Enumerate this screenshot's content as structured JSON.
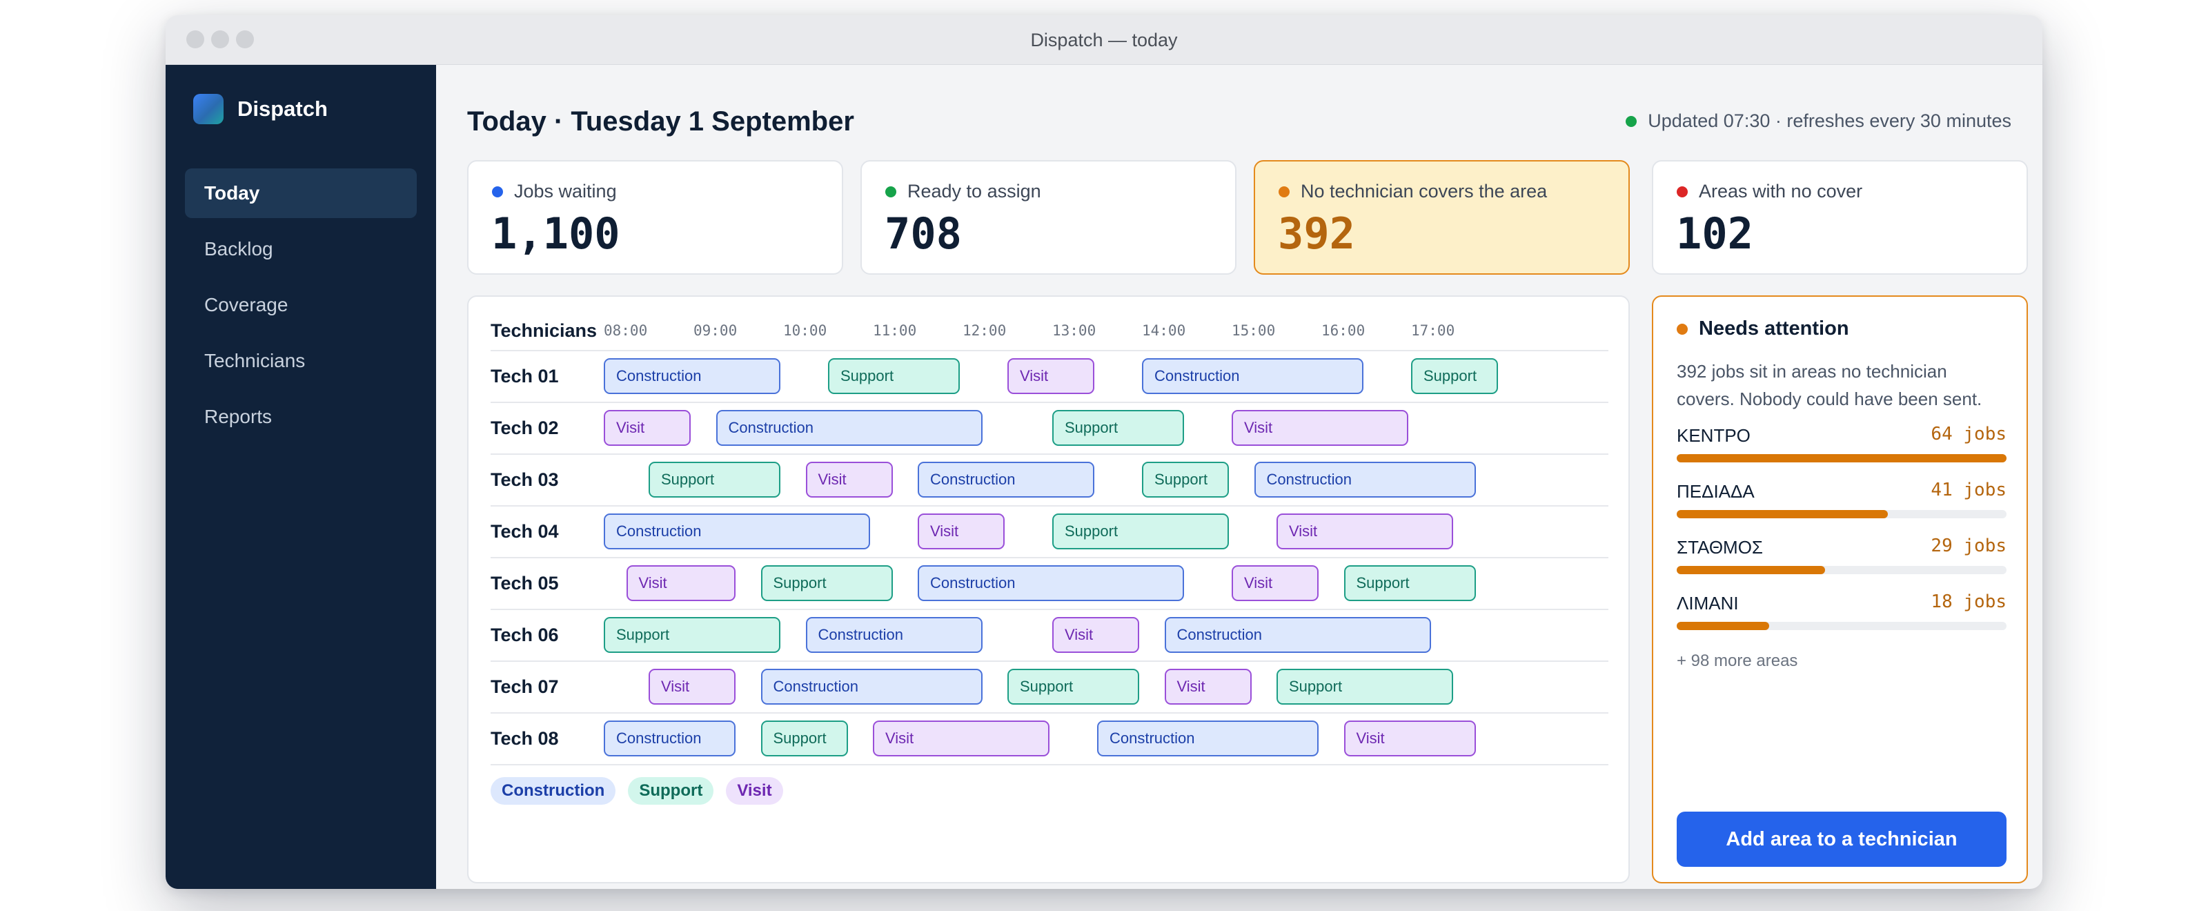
{
  "window": {
    "title": "Dispatch — today"
  },
  "sidebar": {
    "brand": "Dispatch",
    "items": [
      {
        "label": "Today",
        "active": true
      },
      {
        "label": "Backlog",
        "active": false
      },
      {
        "label": "Coverage",
        "active": false
      },
      {
        "label": "Technicians",
        "active": false
      },
      {
        "label": "Reports",
        "active": false
      }
    ]
  },
  "header": {
    "title": "Today · Tuesday 1 September",
    "updated": "Updated 07:30 · refreshes every 30 minutes"
  },
  "stats": [
    {
      "label": "Jobs waiting",
      "value": "1,100",
      "dot_color": "#2563eb",
      "highlight": false
    },
    {
      "label": "Ready to assign",
      "value": "708",
      "dot_color": "#16a34a",
      "highlight": false
    },
    {
      "label": "No technician covers the area",
      "value": "392",
      "dot_color": "#e07b12",
      "highlight": true
    },
    {
      "label": "Areas with no cover",
      "value": "102",
      "dot_color": "#dc2626",
      "highlight": false
    }
  ],
  "schedule": {
    "header_label": "Technicians",
    "hours": [
      "08:00",
      "09:00",
      "10:00",
      "11:00",
      "12:00",
      "13:00",
      "14:00",
      "15:00",
      "16:00",
      "17:00"
    ],
    "rows": [
      {
        "name": "Tech 01",
        "jobs": [
          {
            "type": "Construction",
            "start": "08:00",
            "end": "10:00"
          },
          {
            "type": "Support",
            "start": "10:30",
            "end": "12:00"
          },
          {
            "type": "Visit",
            "start": "12:30",
            "end": "13:30"
          },
          {
            "type": "Construction",
            "start": "14:00",
            "end": "16:30"
          },
          {
            "type": "Support",
            "start": "17:00",
            "end": "18:00"
          }
        ]
      },
      {
        "name": "Tech 02",
        "jobs": [
          {
            "type": "Visit",
            "start": "08:00",
            "end": "09:00"
          },
          {
            "type": "Construction",
            "start": "09:15",
            "end": "12:15"
          },
          {
            "type": "Support",
            "start": "13:00",
            "end": "14:30"
          },
          {
            "type": "Visit",
            "start": "15:00",
            "end": "17:00"
          }
        ]
      },
      {
        "name": "Tech 03",
        "jobs": [
          {
            "type": "Support",
            "start": "08:30",
            "end": "10:00"
          },
          {
            "type": "Visit",
            "start": "10:15",
            "end": "11:15"
          },
          {
            "type": "Construction",
            "start": "11:30",
            "end": "13:30"
          },
          {
            "type": "Support",
            "start": "14:00",
            "end": "15:00"
          },
          {
            "type": "Construction",
            "start": "15:15",
            "end": "17:45"
          }
        ]
      },
      {
        "name": "Tech 04",
        "jobs": [
          {
            "type": "Construction",
            "start": "08:00",
            "end": "11:00"
          },
          {
            "type": "Visit",
            "start": "11:30",
            "end": "12:30"
          },
          {
            "type": "Support",
            "start": "13:00",
            "end": "15:00"
          },
          {
            "type": "Visit",
            "start": "15:30",
            "end": "17:30"
          }
        ]
      },
      {
        "name": "Tech 05",
        "jobs": [
          {
            "type": "Visit",
            "start": "08:15",
            "end": "09:30"
          },
          {
            "type": "Support",
            "start": "09:45",
            "end": "11:15"
          },
          {
            "type": "Construction",
            "start": "11:30",
            "end": "14:30"
          },
          {
            "type": "Visit",
            "start": "15:00",
            "end": "16:00"
          },
          {
            "type": "Support",
            "start": "16:15",
            "end": "17:45"
          }
        ]
      },
      {
        "name": "Tech 06",
        "jobs": [
          {
            "type": "Support",
            "start": "08:00",
            "end": "10:00"
          },
          {
            "type": "Construction",
            "start": "10:15",
            "end": "12:15"
          },
          {
            "type": "Visit",
            "start": "13:00",
            "end": "14:00"
          },
          {
            "type": "Construction",
            "start": "14:15",
            "end": "17:15"
          }
        ]
      },
      {
        "name": "Tech 07",
        "jobs": [
          {
            "type": "Visit",
            "start": "08:30",
            "end": "09:30"
          },
          {
            "type": "Construction",
            "start": "09:45",
            "end": "12:15"
          },
          {
            "type": "Support",
            "start": "12:30",
            "end": "14:00"
          },
          {
            "type": "Visit",
            "start": "14:15",
            "end": "15:15"
          },
          {
            "type": "Support",
            "start": "15:30",
            "end": "17:30"
          }
        ]
      },
      {
        "name": "Tech 08",
        "jobs": [
          {
            "type": "Construction",
            "start": "08:00",
            "end": "09:30"
          },
          {
            "type": "Support",
            "start": "09:45",
            "end": "10:45"
          },
          {
            "type": "Visit",
            "start": "11:00",
            "end": "13:00"
          },
          {
            "type": "Construction",
            "start": "13:30",
            "end": "16:00"
          },
          {
            "type": "Visit",
            "start": "16:15",
            "end": "17:45"
          }
        ]
      }
    ],
    "legend": [
      "Construction",
      "Support",
      "Visit"
    ]
  },
  "attention": {
    "title": "Needs attention",
    "description": "392 jobs sit in areas no technician covers. Nobody could have been sent.",
    "areas": [
      {
        "name": "ΚΕΝΤΡΟ",
        "count": "64 jobs",
        "share": 1.0
      },
      {
        "name": "ΠΕΔΙΑΔΑ",
        "count": "41 jobs",
        "share": 0.64
      },
      {
        "name": "ΣΤΑΘΜΟΣ",
        "count": "29 jobs",
        "share": 0.45
      },
      {
        "name": "ΛΙΜΑΝΙ",
        "count": "18 jobs",
        "share": 0.28
      }
    ],
    "more": "+ 98 more areas",
    "cta": "Add area to a technician"
  },
  "colors": {
    "sidebar_bg": "#10223a",
    "accent": "#2563eb",
    "warning": "#e48a1d",
    "construction": "#4a72d9",
    "support": "#1d9e86",
    "visit": "#9a4fd9"
  }
}
